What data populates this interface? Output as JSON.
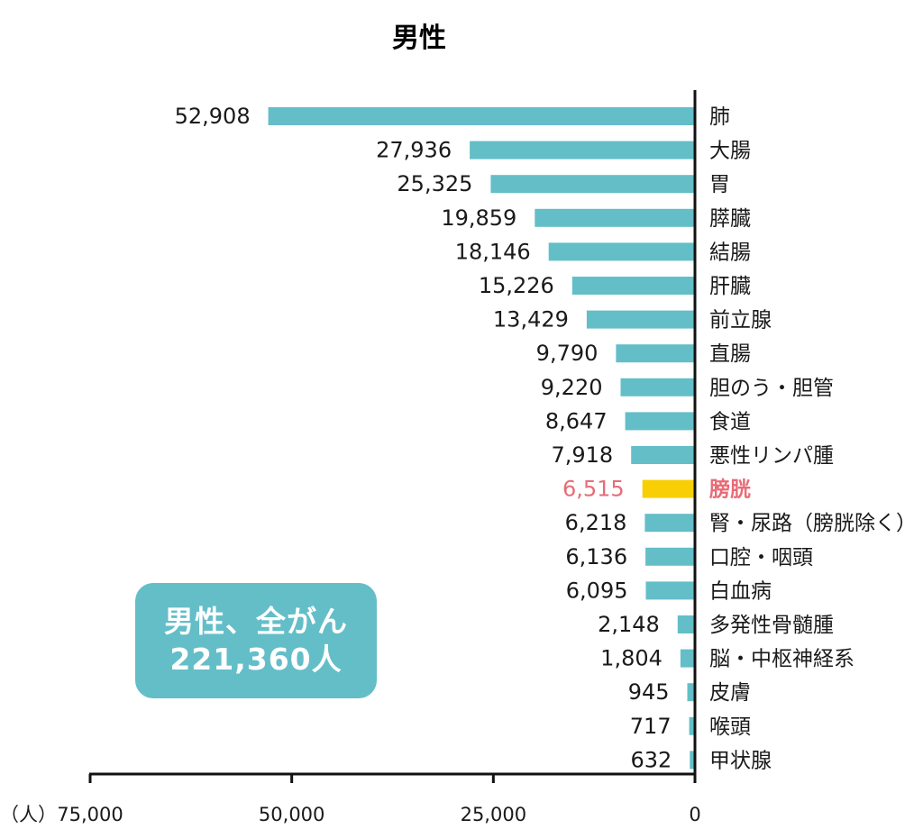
{
  "colors": {
    "bar": "#63bec8",
    "highlight_bar": "#f8cf04",
    "highlight_text": "#e86b77",
    "axis": "#111111",
    "box": "#63bec8"
  },
  "summary": {
    "line1": "男性、全がん",
    "line2": "221,360人"
  },
  "chart_data": {
    "type": "bar",
    "orientation": "horizontal",
    "title": "男性",
    "xlabel": "（人）",
    "xlim": [
      75000,
      0
    ],
    "x_direction": "reversed",
    "xticks": [
      "75,000",
      "50,000",
      "25,000",
      "0"
    ],
    "highlight": "膀胱",
    "categories": [
      "肺",
      "大腸",
      "胃",
      "膵臓",
      "結腸",
      "肝臓",
      "前立腺",
      "直腸",
      "胆のう・胆管",
      "食道",
      "悪性リンパ腫",
      "膀胱",
      "腎・尿路（膀胱除く）",
      "口腔・咽頭",
      "白血病",
      "多発性骨髄腫",
      "脳・中枢神経系",
      "皮膚",
      "喉頭",
      "甲状腺"
    ],
    "values": [
      52908,
      27936,
      25325,
      19859,
      18146,
      15226,
      13429,
      9790,
      9220,
      8647,
      7918,
      6515,
      6218,
      6136,
      6095,
      2148,
      1804,
      945,
      717,
      632
    ],
    "value_labels": [
      "52,908",
      "27,936",
      "25,325",
      "19,859",
      "18,146",
      "15,226",
      "13,429",
      "9,790",
      "9,220",
      "8,647",
      "7,918",
      "6,515",
      "6,218",
      "6,136",
      "6,095",
      "2,148",
      "1,804",
      "945",
      "717",
      "632"
    ]
  }
}
